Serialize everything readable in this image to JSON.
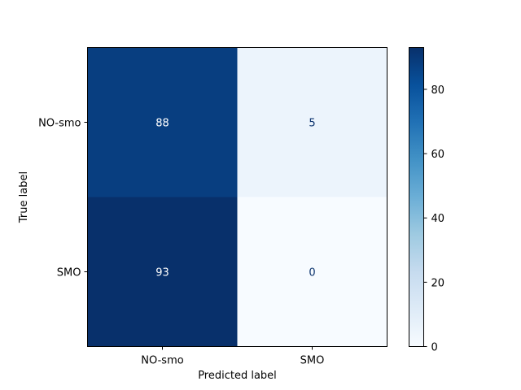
{
  "chart_data": {
    "type": "heatmap",
    "title": "",
    "xlabel": "Predicted label",
    "ylabel": "True label",
    "x_categories": [
      "NO-smo",
      "SMO"
    ],
    "y_categories": [
      "NO-smo",
      "SMO"
    ],
    "values": [
      [
        88,
        5
      ],
      [
        93,
        0
      ]
    ],
    "cell_labels": [
      [
        "88",
        "5"
      ],
      [
        "93",
        "0"
      ]
    ],
    "colormap": "Blues",
    "colorbar": {
      "min": 0,
      "max": 93,
      "ticks": [
        0,
        20,
        40,
        60,
        80
      ],
      "tick_labels": [
        "0",
        "20",
        "40",
        "60",
        "80"
      ]
    },
    "text_colors": {
      "light": "#ffffff",
      "dark": "#08306b"
    },
    "grid": false
  }
}
